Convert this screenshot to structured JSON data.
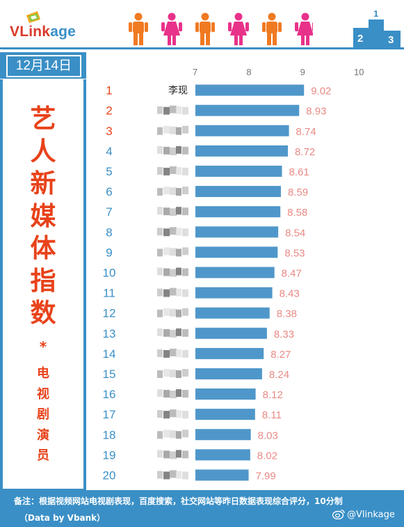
{
  "header": {
    "logo_part1": "VLink",
    "logo_part2": "age",
    "people_icons": [
      "male-icon",
      "female-icon",
      "male-icon",
      "female-icon",
      "male-icon",
      "female-icon"
    ],
    "podium_label": "2 1 3"
  },
  "date": "12月14日",
  "side": {
    "title_chars": [
      "艺",
      "人",
      "新",
      "媒",
      "体",
      "指",
      "数"
    ],
    "star": "*",
    "subtitle_chars": [
      "电",
      "视",
      "剧",
      "演",
      "员"
    ]
  },
  "footer": {
    "note": "备注：根据视频网站电视剧表现，百度搜索，社交网站等昨日数据表现综合评分，10分制",
    "source": "（Data by Vbank）",
    "weibo": "@Vlinkage"
  },
  "colors": {
    "bar": "#4f97ca",
    "value_label": "#e98a85",
    "rank_top3": "#e8421a",
    "rank_rest": "#3a8fc6",
    "accent": "#3a8fc6"
  },
  "chart_data": {
    "type": "bar",
    "orientation": "horizontal",
    "xlim": [
      7,
      10
    ],
    "xticks": [
      7,
      8,
      9,
      10
    ],
    "grid": false,
    "ranks": [
      1,
      2,
      3,
      4,
      5,
      6,
      7,
      8,
      9,
      10,
      11,
      12,
      13,
      14,
      15,
      16,
      17,
      18,
      19,
      20
    ],
    "categories": [
      "李现",
      "",
      "",
      "",
      "",
      "",
      "",
      "",
      "",
      "",
      "",
      "",
      "",
      "",
      "",
      "",
      "",
      "",
      "",
      ""
    ],
    "values": [
      9.02,
      8.93,
      8.74,
      8.72,
      8.61,
      8.59,
      8.58,
      8.54,
      8.53,
      8.47,
      8.43,
      8.38,
      8.33,
      8.27,
      8.24,
      8.12,
      8.11,
      8.03,
      8.02,
      7.99
    ]
  }
}
